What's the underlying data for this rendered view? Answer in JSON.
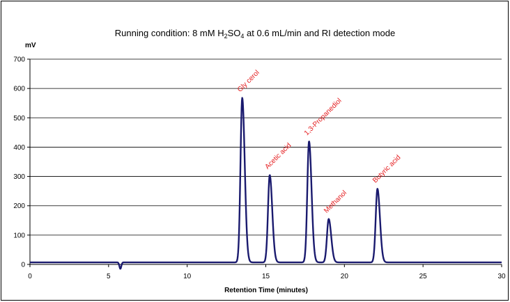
{
  "title": {
    "prefix": "Running condition: 8 mM H",
    "sub1": "2",
    "mid": "SO",
    "sub2": "4",
    "suffix": " at 0.6 mL/min and RI detection mode"
  },
  "chart_data": {
    "type": "line",
    "title": "Running condition: 8 mM H2SO4 at 0.6 mL/min and RI detection mode",
    "xlabel": "Retention Time (minutes)",
    "ylabel": "mV",
    "xlim": [
      0,
      30
    ],
    "ylim": [
      0,
      700
    ],
    "xticks": [
      "0",
      "5",
      "10",
      "15",
      "20",
      "25",
      "30"
    ],
    "yticks": [
      "0",
      "100",
      "200",
      "300",
      "400",
      "500",
      "600",
      "700"
    ],
    "grid": "horizontal",
    "baseline": 7,
    "dip": {
      "time": 5.75,
      "depth": 22
    },
    "peaks": [
      {
        "name": "Gly cerol",
        "time": 13.5,
        "height": 568
      },
      {
        "name": "Acetic acid",
        "time": 15.25,
        "height": 305
      },
      {
        "name": "1,3-Propanediol",
        "time": 17.75,
        "height": 420
      },
      {
        "name": "Methanol",
        "time": 19.0,
        "height": 155
      },
      {
        "name": "Butyric acid",
        "time": 22.1,
        "height": 258
      }
    ],
    "colors": {
      "line": "#1a1a6e",
      "labels": "#e41a1c",
      "grid": "#000000"
    }
  }
}
